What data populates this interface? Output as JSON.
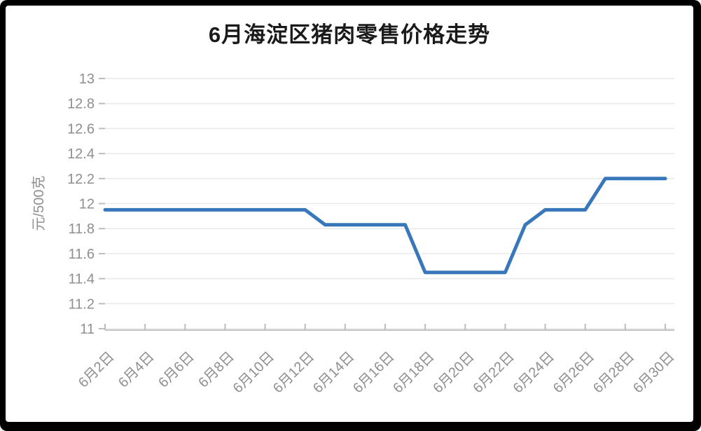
{
  "chart_data": {
    "type": "line",
    "title": "6月海淀区猪肉零售价格走势",
    "ylabel": "元/500克",
    "xlabel": "",
    "x": [
      "6月2日",
      "6月3日",
      "6月4日",
      "6月5日",
      "6月6日",
      "6月7日",
      "6月8日",
      "6月9日",
      "6月10日",
      "6月11日",
      "6月12日",
      "6月13日",
      "6月14日",
      "6月15日",
      "6月16日",
      "6月17日",
      "6月18日",
      "6月19日",
      "6月20日",
      "6月21日",
      "6月22日",
      "6月23日",
      "6月24日",
      "6月25日",
      "6月26日",
      "6月27日",
      "6月28日",
      "6月29日",
      "6月30日"
    ],
    "values": [
      11.95,
      11.95,
      11.95,
      11.95,
      11.95,
      11.95,
      11.95,
      11.95,
      11.95,
      11.95,
      11.95,
      11.83,
      11.83,
      11.83,
      11.83,
      11.83,
      11.45,
      11.45,
      11.45,
      11.45,
      11.45,
      11.83,
      11.95,
      11.95,
      11.95,
      12.2,
      12.2,
      12.2,
      12.2
    ],
    "xtick_labels": [
      "6月2日",
      "6月4日",
      "6月6日",
      "6月8日",
      "6月10日",
      "6月12日",
      "6月14日",
      "6月16日",
      "6月18日",
      "6月20日",
      "6月22日",
      "6月24日",
      "6月26日",
      "6月28日",
      "6月30日"
    ],
    "yticks": [
      11,
      11.2,
      11.4,
      11.6,
      11.8,
      12,
      12.2,
      12.4,
      12.6,
      12.8,
      13
    ],
    "ylim": [
      11,
      13
    ],
    "grid": true,
    "legend": false,
    "series_name": "猪肉零售价格",
    "colors": {
      "line": "#3878BA",
      "title_text": "#1a1a1a",
      "axis_text": "#8f8f8f",
      "gridline": "#e9e9e9",
      "axis_line": "#c4c4c4",
      "tick": "#bdbdbd",
      "frame": "#000000",
      "panel": "#ffffff"
    }
  }
}
